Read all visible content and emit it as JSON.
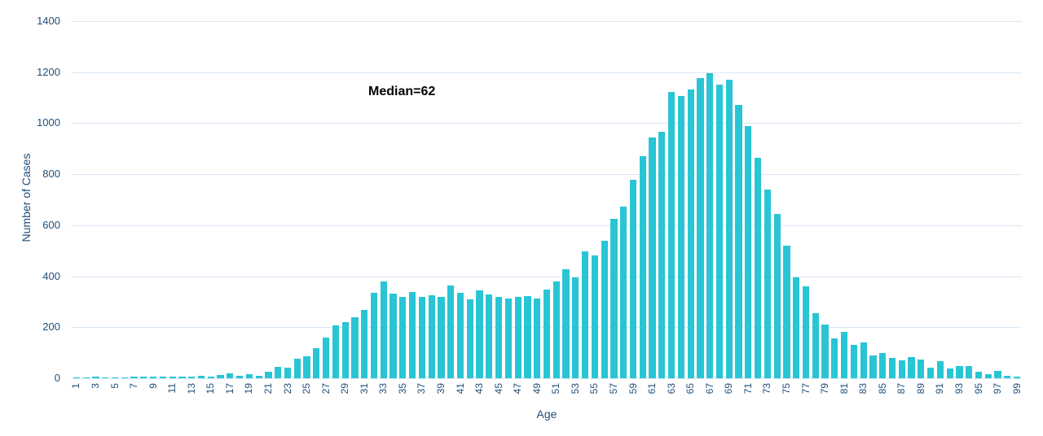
{
  "chart_data": {
    "type": "bar",
    "title": "",
    "xlabel": "Age",
    "ylabel": "Number of Cases",
    "annotation": "Median=62",
    "x": [
      1,
      2,
      3,
      4,
      5,
      6,
      7,
      8,
      9,
      10,
      11,
      12,
      13,
      14,
      15,
      16,
      17,
      18,
      19,
      20,
      21,
      22,
      23,
      24,
      25,
      26,
      27,
      28,
      29,
      30,
      31,
      32,
      33,
      34,
      35,
      36,
      37,
      38,
      39,
      40,
      41,
      42,
      43,
      44,
      45,
      46,
      47,
      48,
      49,
      50,
      51,
      52,
      53,
      54,
      55,
      56,
      57,
      58,
      59,
      60,
      61,
      62,
      63,
      64,
      65,
      66,
      67,
      68,
      69,
      70,
      71,
      72,
      73,
      74,
      75,
      76,
      77,
      78,
      79,
      80,
      81,
      82,
      83,
      84,
      85,
      86,
      87,
      88,
      89,
      90,
      91,
      92,
      93,
      94,
      95,
      96,
      97,
      98,
      99
    ],
    "values": [
      2,
      3,
      6,
      3,
      4,
      4,
      5,
      5,
      6,
      5,
      6,
      5,
      6,
      9,
      7,
      12,
      19,
      10,
      17,
      9,
      25,
      44,
      42,
      78,
      87,
      119,
      161,
      207,
      219,
      240,
      268,
      336,
      380,
      331,
      318,
      339,
      318,
      326,
      318,
      365,
      336,
      310,
      343,
      327,
      320,
      312,
      318,
      322,
      311,
      347,
      378,
      426,
      394,
      498,
      481,
      538,
      624,
      672,
      778,
      871,
      945,
      965,
      1122,
      1106,
      1133,
      1177,
      1195,
      1150,
      1170,
      1071,
      990,
      865,
      740,
      645,
      520,
      397,
      360,
      255,
      210,
      157,
      183,
      132,
      140,
      88,
      100,
      79,
      71,
      84,
      73,
      40,
      66,
      37,
      48,
      47,
      26,
      16,
      29,
      10,
      5
    ],
    "ylim": [
      0,
      1400
    ],
    "yticks": [
      0,
      200,
      400,
      600,
      800,
      1000,
      1200,
      1400
    ],
    "xtick_labels": [
      1,
      3,
      5,
      7,
      9,
      11,
      13,
      15,
      17,
      19,
      21,
      23,
      25,
      27,
      29,
      31,
      33,
      35,
      37,
      39,
      41,
      43,
      45,
      47,
      49,
      51,
      53,
      55,
      57,
      59,
      61,
      63,
      65,
      67,
      69,
      71,
      73,
      75,
      77,
      79,
      81,
      83,
      85,
      87,
      89,
      91,
      93,
      95,
      97,
      99
    ],
    "grid": "horizontal",
    "legend": "none",
    "bar_color": "#29c5d4",
    "gridline_color": "#d9e8f6",
    "axis_text_color": "#1f4e79",
    "annotation_color": "#000000"
  }
}
